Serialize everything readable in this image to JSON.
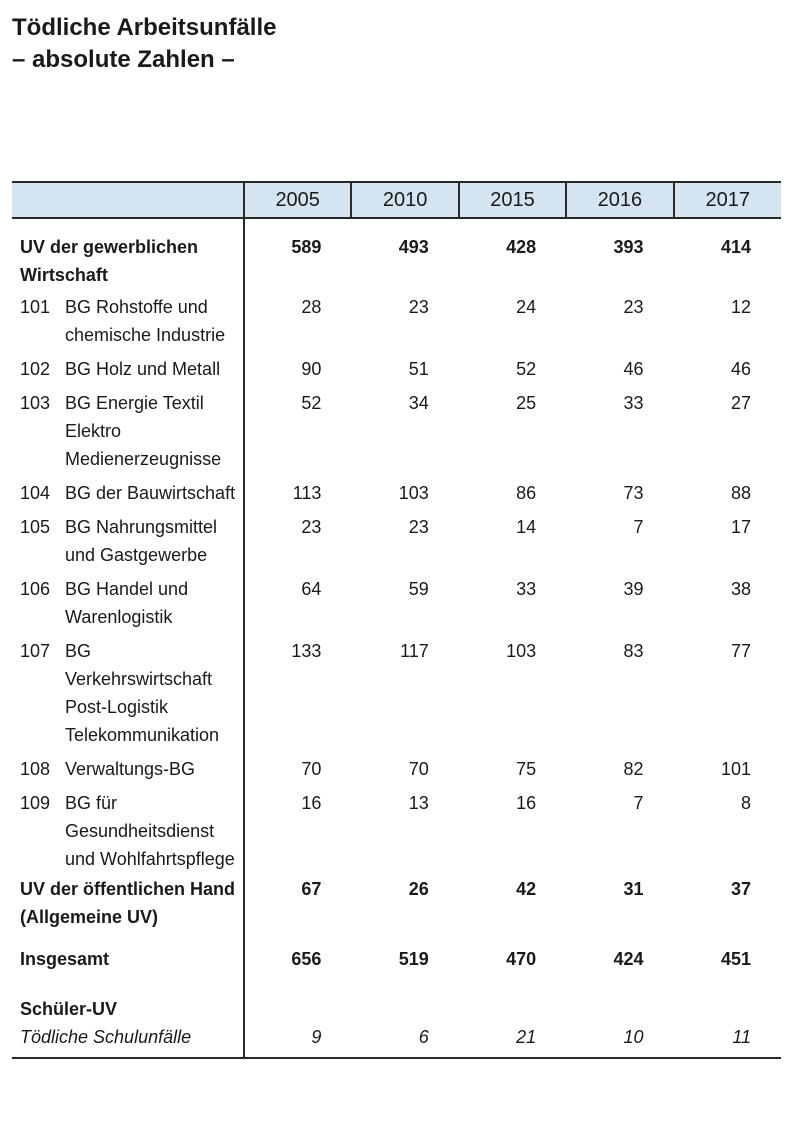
{
  "title": {
    "line1": "Tödliche Arbeitsunfälle",
    "line2": "– absolute Zahlen –"
  },
  "table": {
    "years": [
      "2005",
      "2010",
      "2015",
      "2016",
      "2017"
    ],
    "gewerblich": {
      "label": "UV der gewerblichen Wirtschaft",
      "values": [
        "589",
        "493",
        "428",
        "393",
        "414"
      ]
    },
    "sub_rows": [
      {
        "code": "101",
        "name": "BG Rohstoffe und chemische Industrie",
        "values": [
          "28",
          "23",
          "24",
          "23",
          "12"
        ]
      },
      {
        "code": "102",
        "name": "BG Holz und Metall",
        "values": [
          "90",
          "51",
          "52",
          "46",
          "46"
        ]
      },
      {
        "code": "103",
        "name": "BG Energie Textil Elektro Medienerzeugnisse",
        "values": [
          "52",
          "34",
          "25",
          "33",
          "27"
        ]
      },
      {
        "code": "104",
        "name": "BG der Bauwirtschaft",
        "values": [
          "113",
          "103",
          "86",
          "73",
          "88"
        ]
      },
      {
        "code": "105",
        "name": "BG Nahrungsmittel und Gastgewerbe",
        "values": [
          "23",
          "23",
          "14",
          "7",
          "17"
        ]
      },
      {
        "code": "106",
        "name": "BG Handel und Warenlogistik",
        "values": [
          "64",
          "59",
          "33",
          "39",
          "38"
        ]
      },
      {
        "code": "107",
        "name": "BG Verkehrswirtschaft Post-Logistik Telekommunikation",
        "values": [
          "133",
          "117",
          "103",
          "83",
          "77"
        ]
      },
      {
        "code": "108",
        "name": "Verwaltungs-BG",
        "values": [
          "70",
          "70",
          "75",
          "82",
          "101"
        ]
      },
      {
        "code": "109",
        "name": "BG für Gesundheitsdienst und Wohlfahrtspflege",
        "values": [
          "16",
          "13",
          "16",
          "7",
          "8"
        ]
      }
    ],
    "oeffentlich": {
      "label": "UV der öffentlichen Hand (Allgemeine UV)",
      "values": [
        "67",
        "26",
        "42",
        "31",
        "37"
      ]
    },
    "insgesamt": {
      "label": "Insgesamt",
      "values": [
        "656",
        "519",
        "470",
        "424",
        "451"
      ]
    },
    "schueler": {
      "label": "Schüler-UV",
      "sublabel": "Tödliche Schulunfälle",
      "values": [
        "9",
        "6",
        "21",
        "10",
        "11"
      ]
    }
  }
}
